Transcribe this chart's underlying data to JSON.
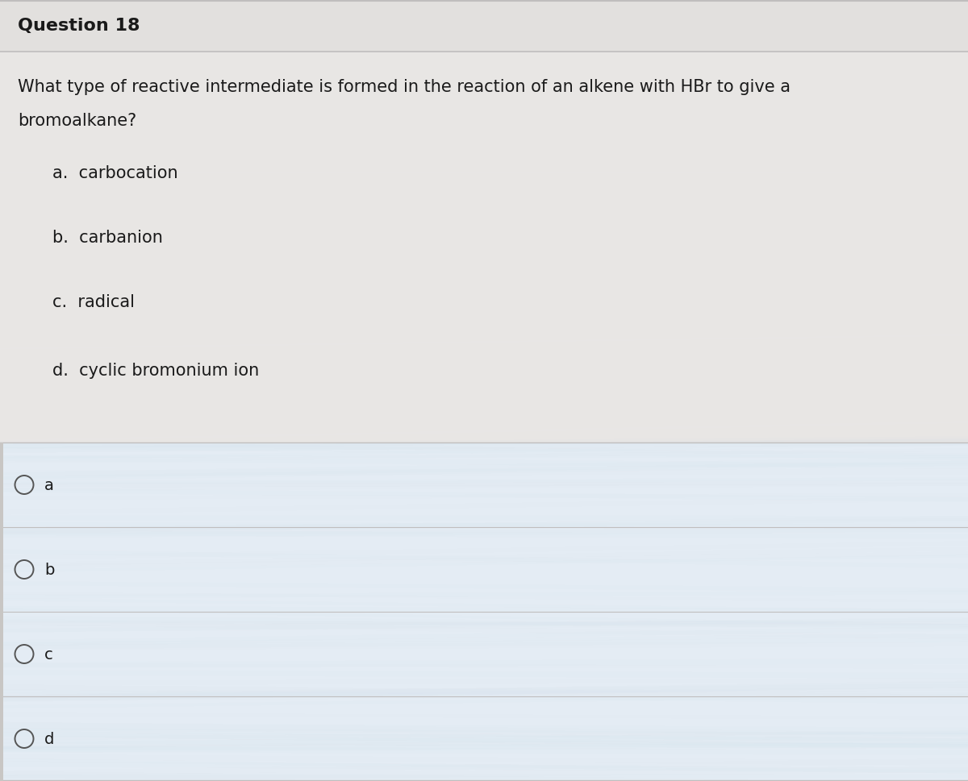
{
  "title": "Question 18",
  "question_line1": "What type of reactive intermediate is formed in the reaction of an alkene with HBr to give a",
  "question_line2": "bromoalkane?",
  "options": [
    "a.  carbocation",
    "b.  carbanion",
    "c.  radical",
    "d.  cyclic bromonium ion"
  ],
  "answer_choices": [
    "a",
    "b",
    "c",
    "d"
  ],
  "bg_color_top": "#e2e0de",
  "bg_color_main": "#e8e6e4",
  "answer_area_bg": "#e4ecf4",
  "title_fontsize": 16,
  "question_fontsize": 15,
  "option_fontsize": 15,
  "answer_fontsize": 14,
  "title_bold": true,
  "line_color": "#c0bebe",
  "text_color": "#1a1a1a",
  "circle_color": "#555555",
  "left_bar_color": "#c8c6c4",
  "left_bar_width": 0.04
}
